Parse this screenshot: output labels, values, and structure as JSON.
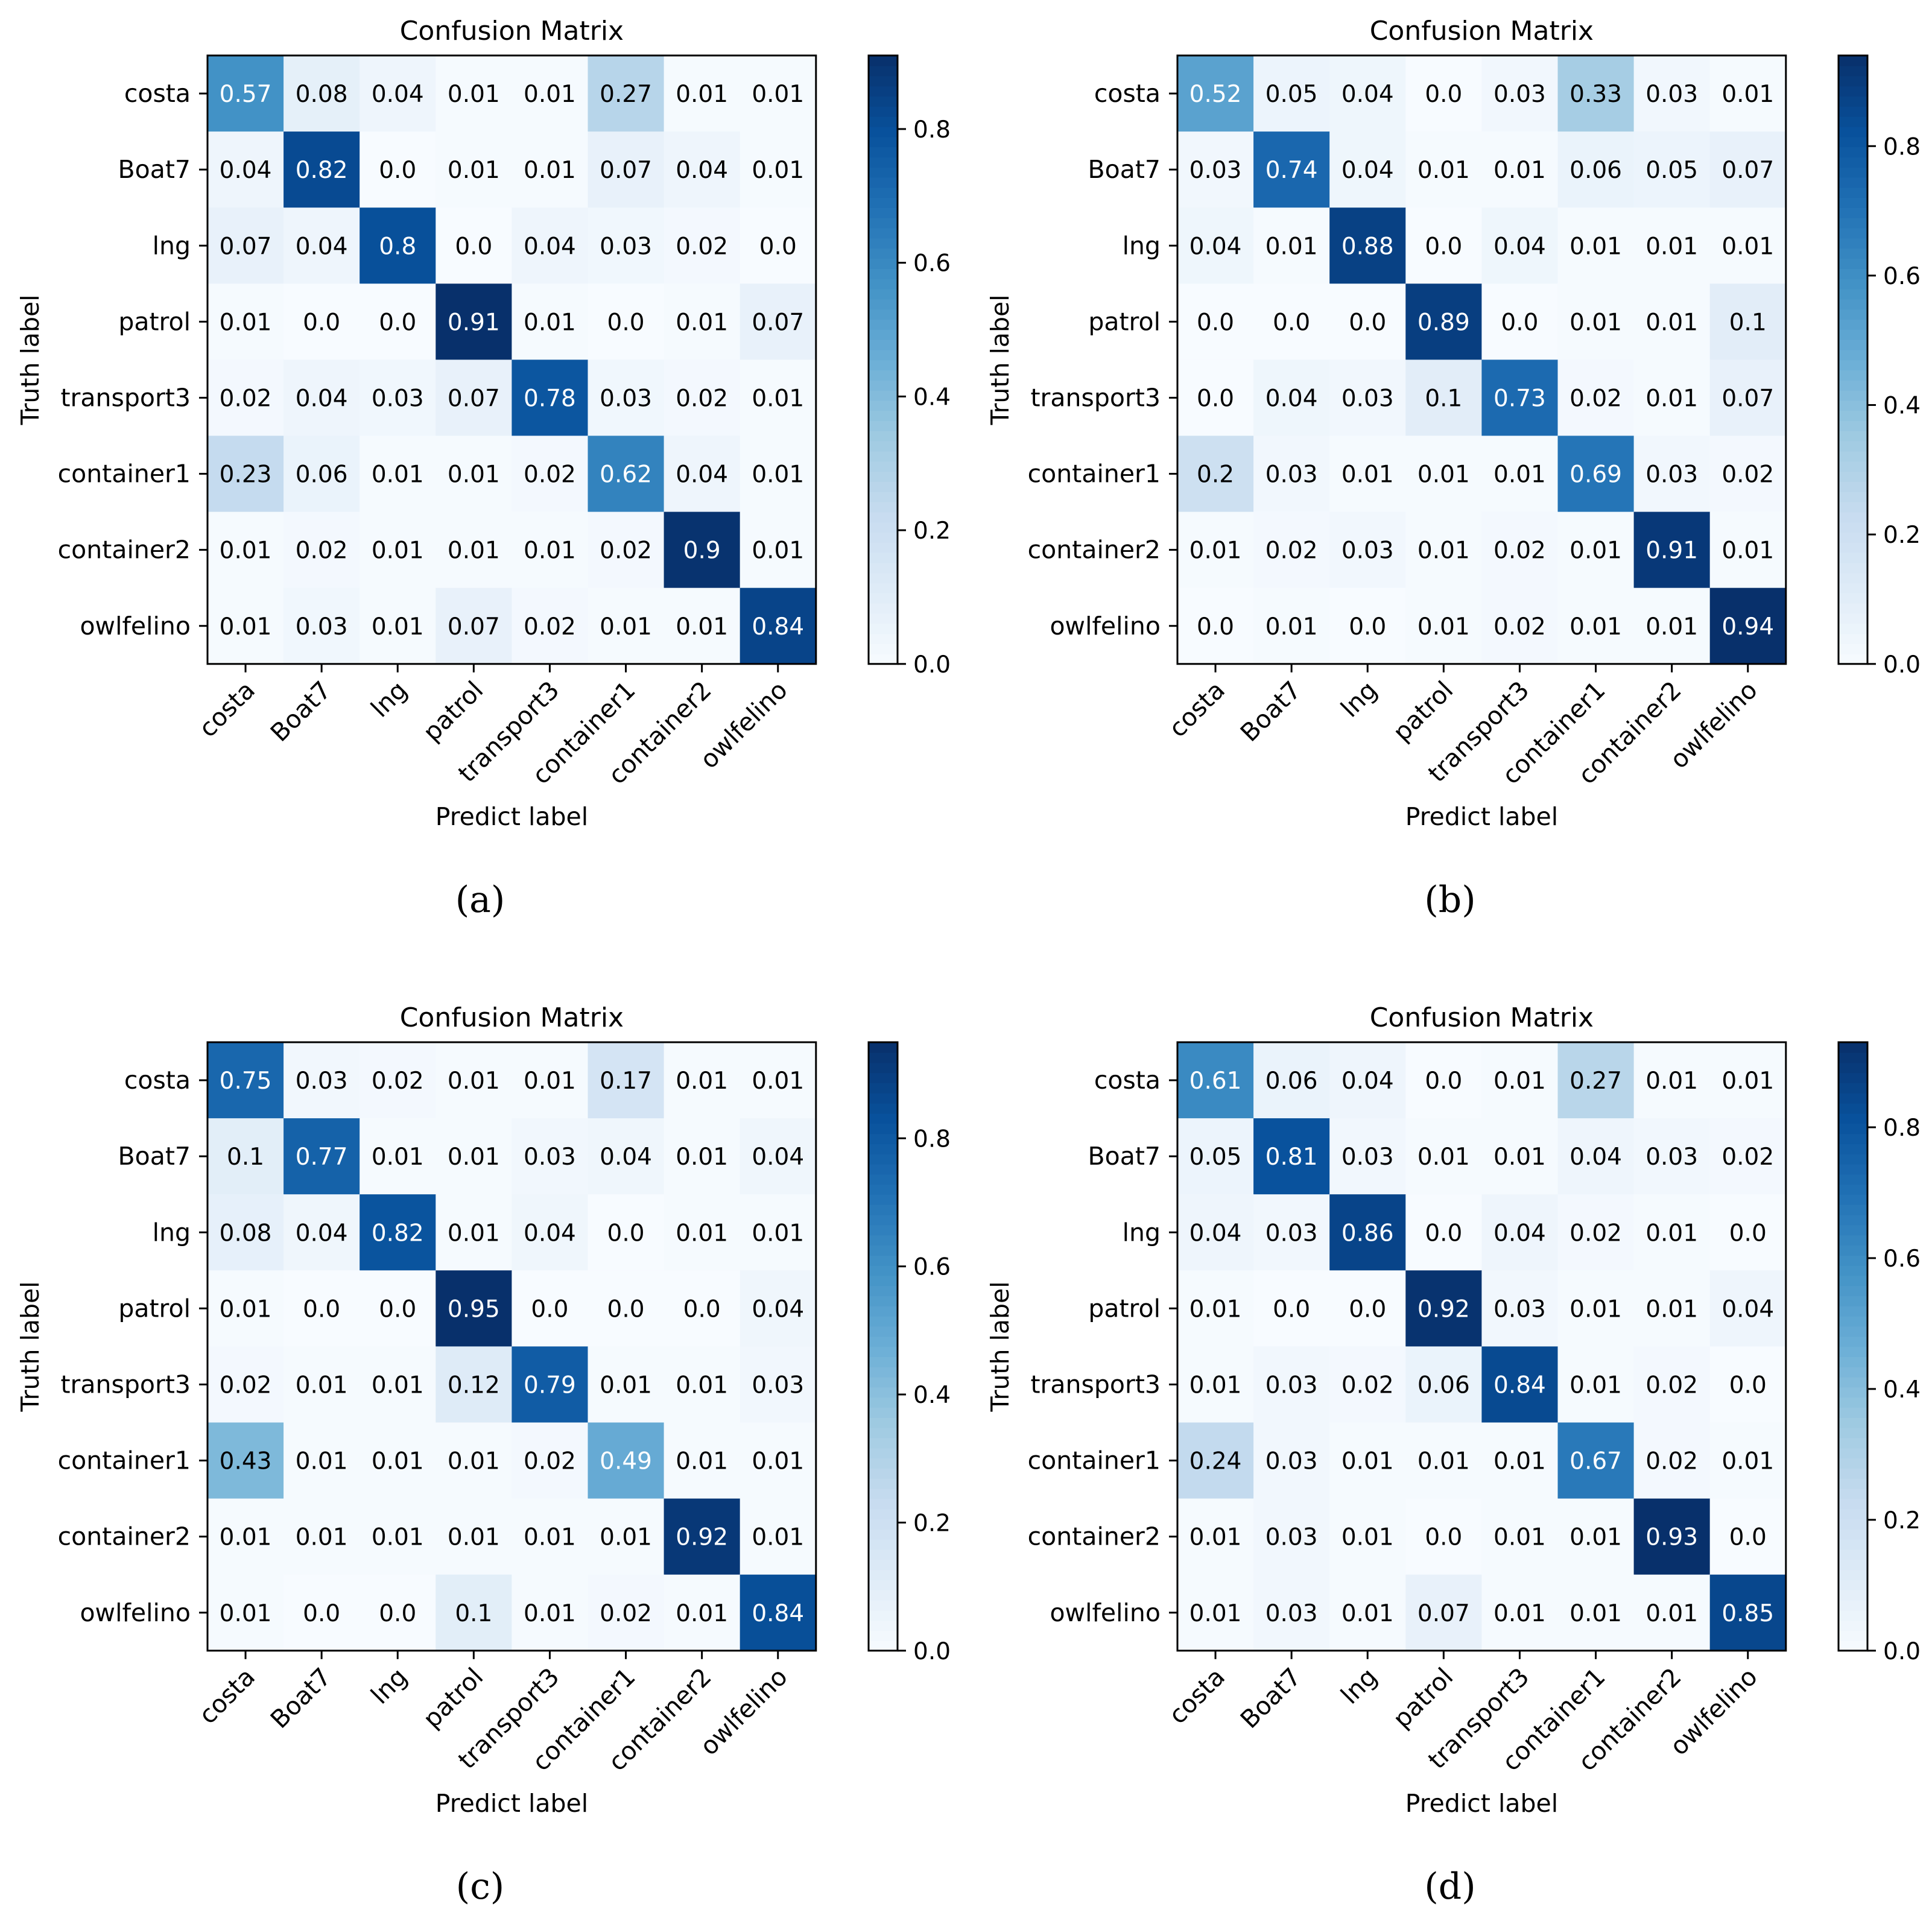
{
  "figure": {
    "colorbar_ticks": [
      "0.0",
      "0.2",
      "0.4",
      "0.6",
      "0.8"
    ],
    "colormap": [
      "#f7fbff",
      "#deebf7",
      "#c6dbef",
      "#9ecae1",
      "#6baed6",
      "#4292c6",
      "#2171b5",
      "#08519c",
      "#08306b"
    ]
  },
  "chart_data": [
    {
      "type": "heatmap",
      "panel_label": "(a)",
      "title": "Confusion Matrix",
      "xlabel": "Predict label",
      "ylabel": "Truth label",
      "x_categories": [
        "costa",
        "Boat7",
        "lng",
        "patrol",
        "transport3",
        "container1",
        "container2",
        "owlfelino"
      ],
      "y_categories": [
        "costa",
        "Boat7",
        "lng",
        "patrol",
        "transport3",
        "container1",
        "container2",
        "owlfelino"
      ],
      "values": [
        [
          0.57,
          0.08,
          0.04,
          0.01,
          0.01,
          0.27,
          0.01,
          0.01
        ],
        [
          0.04,
          0.82,
          0.0,
          0.01,
          0.01,
          0.07,
          0.04,
          0.01
        ],
        [
          0.07,
          0.04,
          0.8,
          0.0,
          0.04,
          0.03,
          0.02,
          0.0
        ],
        [
          0.01,
          0.0,
          0.0,
          0.91,
          0.01,
          0.0,
          0.01,
          0.07
        ],
        [
          0.02,
          0.04,
          0.03,
          0.07,
          0.78,
          0.03,
          0.02,
          0.01
        ],
        [
          0.23,
          0.06,
          0.01,
          0.01,
          0.02,
          0.62,
          0.04,
          0.01
        ],
        [
          0.01,
          0.02,
          0.01,
          0.01,
          0.01,
          0.02,
          0.9,
          0.01
        ],
        [
          0.01,
          0.03,
          0.01,
          0.07,
          0.02,
          0.01,
          0.01,
          0.84
        ]
      ],
      "labels": [
        [
          "0.57",
          "0.08",
          "0.04",
          "0.01",
          "0.01",
          "0.27",
          "0.01",
          "0.01"
        ],
        [
          "0.04",
          "0.82",
          "0.0",
          "0.01",
          "0.01",
          "0.07",
          "0.04",
          "0.01"
        ],
        [
          "0.07",
          "0.04",
          "0.8",
          "0.0",
          "0.04",
          "0.03",
          "0.02",
          "0.0"
        ],
        [
          "0.01",
          "0.0",
          "0.0",
          "0.91",
          "0.01",
          "0.0",
          "0.01",
          "0.07"
        ],
        [
          "0.02",
          "0.04",
          "0.03",
          "0.07",
          "0.78",
          "0.03",
          "0.02",
          "0.01"
        ],
        [
          "0.23",
          "0.06",
          "0.01",
          "0.01",
          "0.02",
          "0.62",
          "0.04",
          "0.01"
        ],
        [
          "0.01",
          "0.02",
          "0.01",
          "0.01",
          "0.01",
          "0.02",
          "0.9",
          "0.01"
        ],
        [
          "0.01",
          "0.03",
          "0.01",
          "0.07",
          "0.02",
          "0.01",
          "0.01",
          "0.84"
        ]
      ],
      "color_range": [
        0,
        0.91
      ]
    },
    {
      "type": "heatmap",
      "panel_label": "(b)",
      "title": "Confusion Matrix",
      "xlabel": "Predict label",
      "ylabel": "Truth label",
      "x_categories": [
        "costa",
        "Boat7",
        "lng",
        "patrol",
        "transport3",
        "container1",
        "container2",
        "owlfelino"
      ],
      "y_categories": [
        "costa",
        "Boat7",
        "lng",
        "patrol",
        "transport3",
        "container1",
        "container2",
        "owlfelino"
      ],
      "values": [
        [
          0.52,
          0.05,
          0.04,
          0.0,
          0.03,
          0.33,
          0.03,
          0.01
        ],
        [
          0.03,
          0.74,
          0.04,
          0.01,
          0.01,
          0.06,
          0.05,
          0.07
        ],
        [
          0.04,
          0.01,
          0.88,
          0.0,
          0.04,
          0.01,
          0.01,
          0.01
        ],
        [
          0.0,
          0.0,
          0.0,
          0.89,
          0.0,
          0.01,
          0.01,
          0.1
        ],
        [
          0.0,
          0.04,
          0.03,
          0.1,
          0.73,
          0.02,
          0.01,
          0.07
        ],
        [
          0.2,
          0.03,
          0.01,
          0.01,
          0.01,
          0.69,
          0.03,
          0.02
        ],
        [
          0.01,
          0.02,
          0.03,
          0.01,
          0.02,
          0.01,
          0.91,
          0.01
        ],
        [
          0.0,
          0.01,
          0.0,
          0.01,
          0.02,
          0.01,
          0.01,
          0.94
        ]
      ],
      "labels": [
        [
          "0.52",
          "0.05",
          "0.04",
          "0.0",
          "0.03",
          "0.33",
          "0.03",
          "0.01"
        ],
        [
          "0.03",
          "0.74",
          "0.04",
          "0.01",
          "0.01",
          "0.06",
          "0.05",
          "0.07"
        ],
        [
          "0.04",
          "0.01",
          "0.88",
          "0.0",
          "0.04",
          "0.01",
          "0.01",
          "0.01"
        ],
        [
          "0.0",
          "0.0",
          "0.0",
          "0.89",
          "0.0",
          "0.01",
          "0.01",
          "0.1"
        ],
        [
          "0.0",
          "0.04",
          "0.03",
          "0.1",
          "0.73",
          "0.02",
          "0.01",
          "0.07"
        ],
        [
          "0.2",
          "0.03",
          "0.01",
          "0.01",
          "0.01",
          "0.69",
          "0.03",
          "0.02"
        ],
        [
          "0.01",
          "0.02",
          "0.03",
          "0.01",
          "0.02",
          "0.01",
          "0.91",
          "0.01"
        ],
        [
          "0.0",
          "0.01",
          "0.0",
          "0.01",
          "0.02",
          "0.01",
          "0.01",
          "0.94"
        ]
      ],
      "color_range": [
        0,
        0.94
      ]
    },
    {
      "type": "heatmap",
      "panel_label": "(c)",
      "title": "Confusion Matrix",
      "xlabel": "Predict label",
      "ylabel": "Truth label",
      "x_categories": [
        "costa",
        "Boat7",
        "lng",
        "patrol",
        "transport3",
        "container1",
        "container2",
        "owlfelino"
      ],
      "y_categories": [
        "costa",
        "Boat7",
        "lng",
        "patrol",
        "transport3",
        "container1",
        "container2",
        "owlfelino"
      ],
      "values": [
        [
          0.75,
          0.03,
          0.02,
          0.01,
          0.01,
          0.17,
          0.01,
          0.01
        ],
        [
          0.1,
          0.77,
          0.01,
          0.01,
          0.03,
          0.04,
          0.01,
          0.04
        ],
        [
          0.08,
          0.04,
          0.82,
          0.01,
          0.04,
          0.0,
          0.01,
          0.01
        ],
        [
          0.01,
          0.0,
          0.0,
          0.95,
          0.0,
          0.0,
          0.0,
          0.04
        ],
        [
          0.02,
          0.01,
          0.01,
          0.12,
          0.79,
          0.01,
          0.01,
          0.03
        ],
        [
          0.43,
          0.01,
          0.01,
          0.01,
          0.02,
          0.49,
          0.01,
          0.01
        ],
        [
          0.01,
          0.01,
          0.01,
          0.01,
          0.01,
          0.01,
          0.92,
          0.01
        ],
        [
          0.01,
          0.0,
          0.0,
          0.1,
          0.01,
          0.02,
          0.01,
          0.84
        ]
      ],
      "labels": [
        [
          "0.75",
          "0.03",
          "0.02",
          "0.01",
          "0.01",
          "0.17",
          "0.01",
          "0.01"
        ],
        [
          "0.1",
          "0.77",
          "0.01",
          "0.01",
          "0.03",
          "0.04",
          "0.01",
          "0.04"
        ],
        [
          "0.08",
          "0.04",
          "0.82",
          "0.01",
          "0.04",
          "0.0",
          "0.01",
          "0.01"
        ],
        [
          "0.01",
          "0.0",
          "0.0",
          "0.95",
          "0.0",
          "0.0",
          "0.0",
          "0.04"
        ],
        [
          "0.02",
          "0.01",
          "0.01",
          "0.12",
          "0.79",
          "0.01",
          "0.01",
          "0.03"
        ],
        [
          "0.43",
          "0.01",
          "0.01",
          "0.01",
          "0.02",
          "0.49",
          "0.01",
          "0.01"
        ],
        [
          "0.01",
          "0.01",
          "0.01",
          "0.01",
          "0.01",
          "0.01",
          "0.92",
          "0.01"
        ],
        [
          "0.01",
          "0.0",
          "0.0",
          "0.1",
          "0.01",
          "0.02",
          "0.01",
          "0.84"
        ]
      ],
      "color_range": [
        0,
        0.95
      ]
    },
    {
      "type": "heatmap",
      "panel_label": "(d)",
      "title": "Confusion Matrix",
      "xlabel": "Predict label",
      "ylabel": "Truth label",
      "x_categories": [
        "costa",
        "Boat7",
        "lng",
        "patrol",
        "transport3",
        "container1",
        "container2",
        "owlfelino"
      ],
      "y_categories": [
        "costa",
        "Boat7",
        "lng",
        "patrol",
        "transport3",
        "container1",
        "container2",
        "owlfelino"
      ],
      "values": [
        [
          0.61,
          0.06,
          0.04,
          0.0,
          0.01,
          0.27,
          0.01,
          0.01
        ],
        [
          0.05,
          0.81,
          0.03,
          0.01,
          0.01,
          0.04,
          0.03,
          0.02
        ],
        [
          0.04,
          0.03,
          0.86,
          0.0,
          0.04,
          0.02,
          0.01,
          0.0
        ],
        [
          0.01,
          0.0,
          0.0,
          0.92,
          0.03,
          0.01,
          0.01,
          0.04
        ],
        [
          0.01,
          0.03,
          0.02,
          0.06,
          0.84,
          0.01,
          0.02,
          0.0
        ],
        [
          0.24,
          0.03,
          0.01,
          0.01,
          0.01,
          0.67,
          0.02,
          0.01
        ],
        [
          0.01,
          0.03,
          0.01,
          0.0,
          0.01,
          0.01,
          0.93,
          0.0
        ],
        [
          0.01,
          0.03,
          0.01,
          0.07,
          0.01,
          0.01,
          0.01,
          0.85
        ]
      ],
      "labels": [
        [
          "0.61",
          "0.06",
          "0.04",
          "0.0",
          "0.01",
          "0.27",
          "0.01",
          "0.01"
        ],
        [
          "0.05",
          "0.81",
          "0.03",
          "0.01",
          "0.01",
          "0.04",
          "0.03",
          "0.02"
        ],
        [
          "0.04",
          "0.03",
          "0.86",
          "0.0",
          "0.04",
          "0.02",
          "0.01",
          "0.0"
        ],
        [
          "0.01",
          "0.0",
          "0.0",
          "0.92",
          "0.03",
          "0.01",
          "0.01",
          "0.04"
        ],
        [
          "0.01",
          "0.03",
          "0.02",
          "0.06",
          "0.84",
          "0.01",
          "0.02",
          "0.0"
        ],
        [
          "0.24",
          "0.03",
          "0.01",
          "0.01",
          "0.01",
          "0.67",
          "0.02",
          "0.01"
        ],
        [
          "0.01",
          "0.03",
          "0.01",
          "0.0",
          "0.01",
          "0.01",
          "0.93",
          "0.0"
        ],
        [
          "0.01",
          "0.03",
          "0.01",
          "0.07",
          "0.01",
          "0.01",
          "0.01",
          "0.85"
        ]
      ],
      "color_range": [
        0,
        0.93
      ]
    }
  ]
}
